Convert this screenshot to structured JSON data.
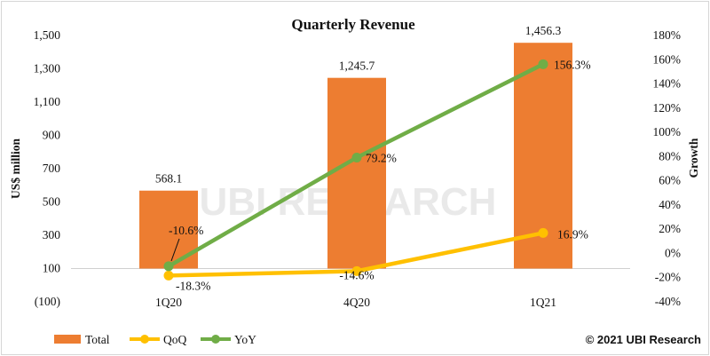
{
  "chart_data": {
    "type": "bar",
    "title": "Quarterly Revenue",
    "categories": [
      "1Q20",
      "4Q20",
      "1Q21"
    ],
    "ylabel": "US$ million",
    "y2label": "Growth",
    "ylim": [
      -100,
      1500
    ],
    "y_ticks": [
      "(100)",
      "100",
      "300",
      "500",
      "700",
      "900",
      "1,100",
      "1,300",
      "1,500"
    ],
    "y2lim": [
      -40,
      180
    ],
    "y2_ticks": [
      "-40%",
      "-20%",
      "0%",
      "20%",
      "40%",
      "60%",
      "80%",
      "100%",
      "120%",
      "140%",
      "160%",
      "180%"
    ],
    "series": [
      {
        "name": "Total",
        "type": "bar",
        "axis": "left",
        "values": [
          568.1,
          1245.7,
          1456.3
        ],
        "labels": [
          "568.1",
          "1,245.7",
          "1,456.3"
        ],
        "color": "#ed7d31"
      },
      {
        "name": "QoQ",
        "type": "line",
        "axis": "right",
        "values": [
          -18.3,
          -14.6,
          16.9
        ],
        "labels": [
          "-18.3%",
          "-14.6%",
          "16.9%"
        ],
        "color": "#ffc000"
      },
      {
        "name": "YoY",
        "type": "line",
        "axis": "right",
        "values": [
          -10.6,
          79.2,
          156.3
        ],
        "labels": [
          "-10.6%",
          "79.2%",
          "156.3%"
        ],
        "color": "#70ad47"
      }
    ],
    "legend_position": "bottom-left",
    "grid": false
  },
  "watermark": "UBI RESEARCH",
  "copyright": "© 2021 UBI Research"
}
